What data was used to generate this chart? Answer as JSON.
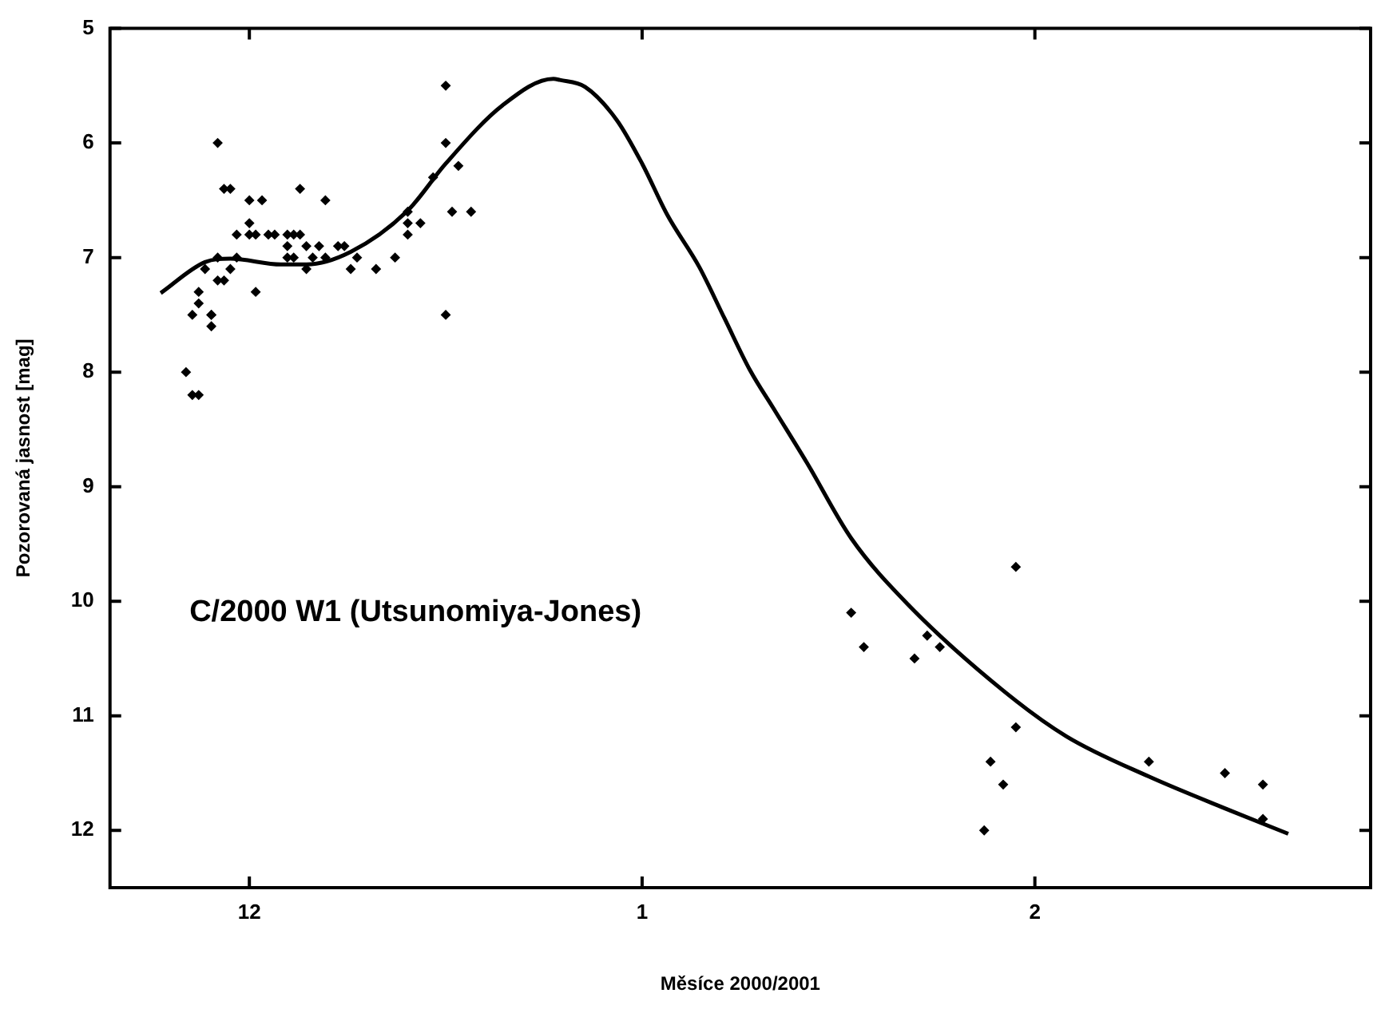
{
  "chart_data": {
    "type": "scatter",
    "xlabel": "Měsíce 2000/2001",
    "ylabel": "Pozorovaná jasnost [mag]",
    "annotations": [
      "C/2000 W1 (Utsunomiya-Jones)"
    ],
    "xlim": [
      "2000-11-20",
      "2001-02-27T12:00"
    ],
    "xticks": [
      {
        "value": "2000-12-01",
        "label": "12"
      },
      {
        "value": "2001-01-01",
        "label": "1"
      },
      {
        "value": "2001-02-01",
        "label": "2"
      }
    ],
    "ylim": [
      12.5,
      5
    ],
    "yticks": [
      5,
      6,
      7,
      8,
      9,
      10,
      11,
      12
    ],
    "grid": false,
    "legend": false,
    "series": [
      {
        "color": "#000000",
        "marker": "diamond",
        "x": [
          "2000-12-16T12:00",
          "2000-11-28T12:00",
          "2000-12-16T12:00",
          "2000-11-29",
          "2000-11-29T12:00",
          "2000-12-05",
          "2000-12-01",
          "2000-12-02",
          "2000-12-07",
          "2000-12-15T12:00",
          "2000-12-17T12:00",
          "2000-12-17",
          "2000-12-18T12:00",
          "2000-12-01",
          "2000-11-30",
          "2000-12-01",
          "2000-12-01T12:00",
          "2000-12-02T12:00",
          "2000-12-03",
          "2000-12-04",
          "2000-12-04T12:00",
          "2000-12-05",
          "2000-12-13T12:00",
          "2000-12-13T12:00",
          "2000-12-14T12:00",
          "2000-12-13T12:00",
          "2000-12-04",
          "2000-12-05T12:00",
          "2000-12-06T12:00",
          "2000-12-08",
          "2000-12-08T12:00",
          "2000-11-28T12:00",
          "2000-11-30",
          "2000-12-04",
          "2000-12-04T12:00",
          "2000-12-06",
          "2000-12-07",
          "2000-12-09T12:00",
          "2000-12-12T12:00",
          "2000-11-27T12:00",
          "2000-11-29T12:00",
          "2000-12-05T12:00",
          "2000-12-09",
          "2000-12-11",
          "2000-11-28T12:00",
          "2000-11-29",
          "2000-12-01T12:00",
          "2000-11-27",
          "2000-11-27",
          "2000-11-26T12:00",
          "2000-11-28",
          "2000-11-28",
          "2000-11-28",
          "2000-12-16T12:00",
          "2000-11-26",
          "2000-11-26T12:00",
          "2000-11-27",
          "2001-01-17T12:00",
          "2001-01-18T12:00",
          "2001-01-22T12:00",
          "2001-01-23T12:00",
          "2001-01-24T12:00",
          "2001-01-30T12:00",
          "2001-01-30T12:00",
          "2001-01-28T12:00",
          "2001-01-29T12:00",
          "2001-01-28",
          "2001-02-10",
          "2001-02-16",
          "2001-02-19",
          "2001-02-19"
        ],
        "values": [
          5.5,
          6.0,
          6.0,
          6.4,
          6.4,
          6.4,
          6.5,
          6.5,
          6.5,
          6.3,
          6.2,
          6.6,
          6.6,
          6.7,
          6.8,
          6.8,
          6.8,
          6.8,
          6.8,
          6.8,
          6.8,
          6.8,
          6.6,
          6.7,
          6.7,
          6.8,
          6.9,
          6.9,
          6.9,
          6.9,
          6.9,
          7.0,
          7.0,
          7.0,
          7.0,
          7.0,
          7.0,
          7.0,
          7.0,
          7.1,
          7.1,
          7.1,
          7.1,
          7.1,
          7.2,
          7.2,
          7.3,
          7.3,
          7.4,
          7.5,
          7.5,
          7.5,
          7.6,
          7.5,
          8.0,
          8.2,
          8.2,
          10.1,
          10.4,
          10.5,
          10.3,
          10.4,
          9.7,
          11.1,
          11.4,
          11.6,
          12.0,
          11.4,
          11.5,
          11.6,
          11.9
        ]
      },
      {
        "type": "line",
        "color": "#000000",
        "marker": "none",
        "line_style": "solid",
        "x": [
          "2000-11-24",
          "2000-11-27T12:00",
          "2000-11-29T12:00",
          "2000-12-03T12:00",
          "2000-12-05T12:00",
          "2000-12-09",
          "2000-12-13T12:00",
          "2000-12-16T12:00",
          "2000-12-21",
          "2000-12-25",
          "2000-12-25T12:00",
          "2000-12-27T12:00",
          "2000-12-30",
          "2001-01-01",
          "2001-01-03",
          "2001-01-05T12:00",
          "2001-01-07T12:00",
          "2001-01-09T12:00",
          "2001-01-11T12:00",
          "2001-01-14",
          "2001-01-17T12:00",
          "2001-01-22",
          "2001-01-29T12:00",
          "2001-02-03T12:00",
          "2001-02-10",
          "2001-02-16T12:00",
          "2001-02-21"
        ],
        "values": [
          7.31,
          7.04,
          7.01,
          7.06,
          7.06,
          6.95,
          6.59,
          6.18,
          5.67,
          5.44,
          5.45,
          5.51,
          5.8,
          6.18,
          6.63,
          7.08,
          7.53,
          7.98,
          8.34,
          8.79,
          9.45,
          10.03,
          10.78,
          11.18,
          11.53,
          11.83,
          12.03
        ]
      }
    ]
  }
}
